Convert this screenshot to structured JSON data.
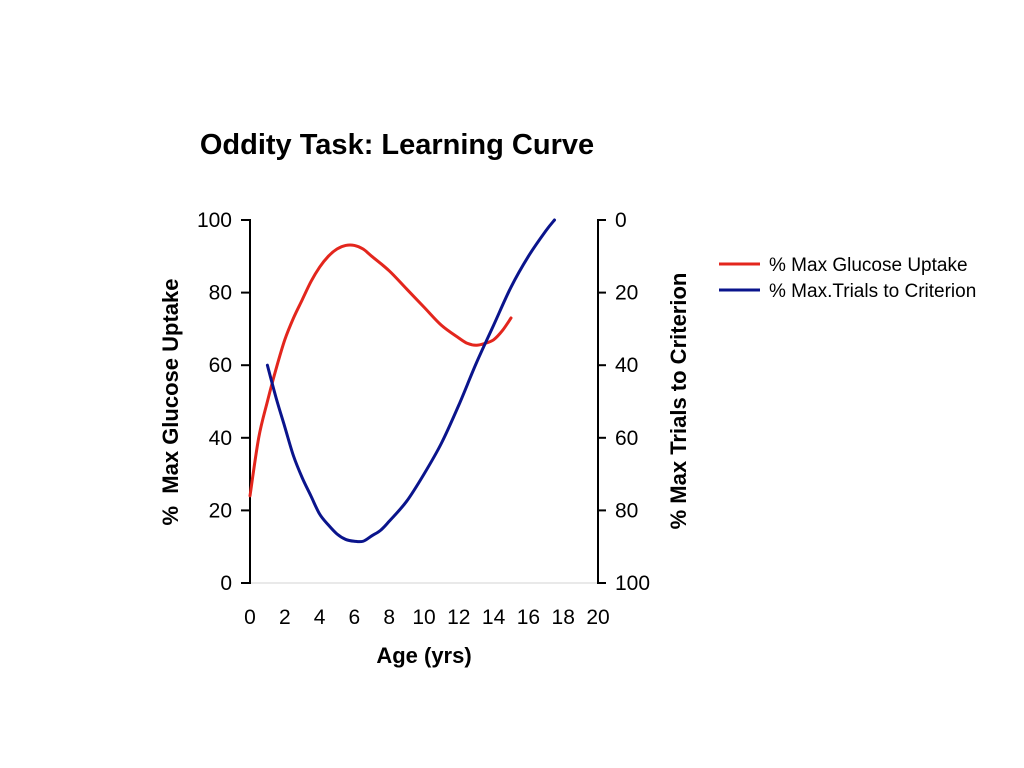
{
  "chart_data": {
    "type": "line",
    "title": "Oddity Task: Learning Curve",
    "xlabel": "Age (yrs)",
    "ylabel": "%  Max Glucose Uptake",
    "y2label": "% Max Trials to Criterion",
    "xlim": [
      0,
      20
    ],
    "ylim": [
      0,
      100
    ],
    "y2lim": [
      0,
      100
    ],
    "y2_inverted": true,
    "x_ticks": [
      0,
      2,
      4,
      6,
      8,
      10,
      12,
      14,
      16,
      18,
      20
    ],
    "y_ticks": [
      0,
      20,
      40,
      60,
      80,
      100
    ],
    "y2_ticks": [
      0,
      20,
      40,
      60,
      80,
      100
    ],
    "grid": false,
    "legend_position": "right",
    "series": [
      {
        "name": "% Max Glucose Uptake",
        "axis": "left",
        "color": "#e3261d",
        "x": [
          0,
          0.5,
          1,
          1.5,
          2,
          2.5,
          3,
          3.5,
          4,
          4.5,
          5,
          5.5,
          6,
          6.5,
          7,
          8,
          9,
          10,
          11,
          12,
          12.5,
          13,
          13.5,
          14,
          14.5,
          15
        ],
        "y": [
          24,
          40,
          50,
          59,
          67,
          73,
          78,
          83,
          87,
          90,
          92,
          93,
          93,
          92,
          90,
          86,
          81,
          76,
          71,
          67.5,
          66,
          65.5,
          66,
          67,
          69.5,
          73
        ]
      },
      {
        "name": "% Max.Trials to Criterion",
        "axis": "right",
        "color": "#0a148c",
        "x": [
          1,
          1.5,
          2,
          2.5,
          3,
          3.5,
          4,
          4.5,
          5,
          5.5,
          6,
          6.5,
          7,
          7.5,
          8,
          9,
          10,
          11,
          12,
          13,
          14,
          15,
          16,
          17,
          17.5
        ],
        "y": [
          40,
          49,
          57,
          65,
          71,
          76,
          81,
          84,
          86.5,
          88,
          88.5,
          88.5,
          87,
          85.5,
          83,
          77.5,
          70,
          61.5,
          51,
          39.5,
          29,
          18.5,
          10,
          3,
          0
        ]
      }
    ]
  }
}
